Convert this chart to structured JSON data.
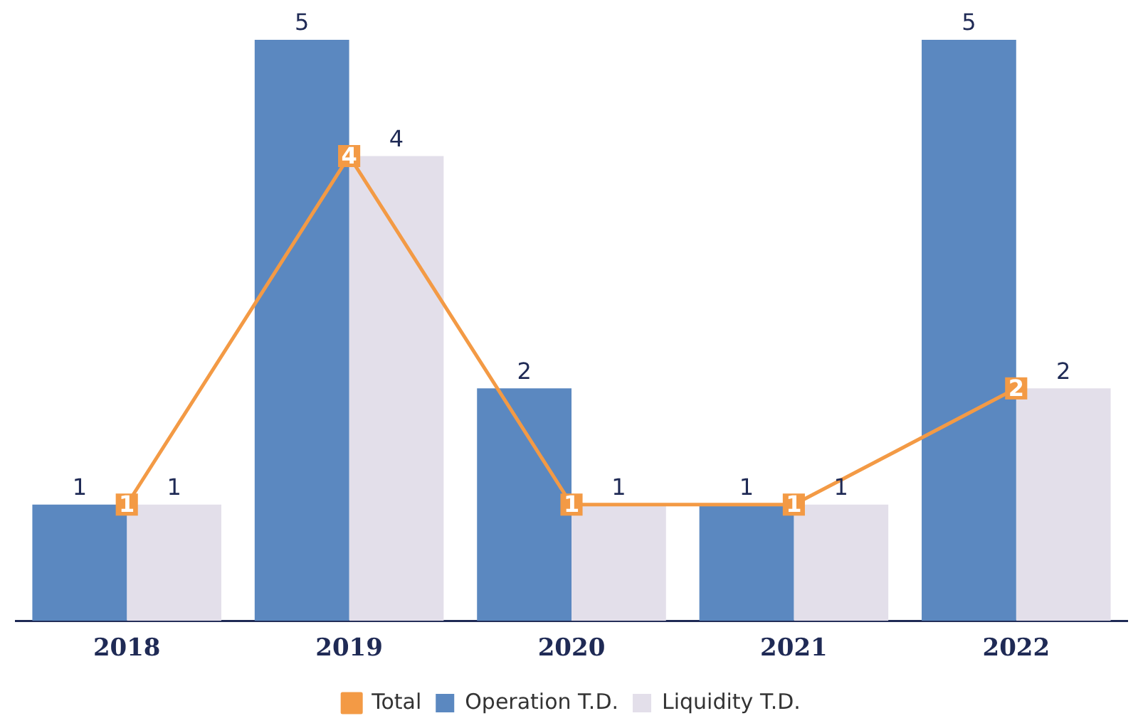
{
  "chart_data": {
    "type": "bar",
    "categories": [
      "2018",
      "2019",
      "2020",
      "2021",
      "2022"
    ],
    "series": [
      {
        "name": "Operation T.D.",
        "color": "#5b88c0",
        "values": [
          1,
          5,
          2,
          1,
          5
        ]
      },
      {
        "name": "Liquidity T.D.",
        "color": "#e3dfea",
        "values": [
          1,
          4,
          1,
          1,
          2
        ]
      },
      {
        "name": "Total",
        "type": "line",
        "color": "#f39a45",
        "marker": "square",
        "values": [
          1,
          4,
          1,
          1,
          2
        ]
      }
    ],
    "ylim": [
      0,
      5
    ],
    "tick_labels": "x",
    "grid": false,
    "legend": "bottom",
    "data_labels": true
  }
}
